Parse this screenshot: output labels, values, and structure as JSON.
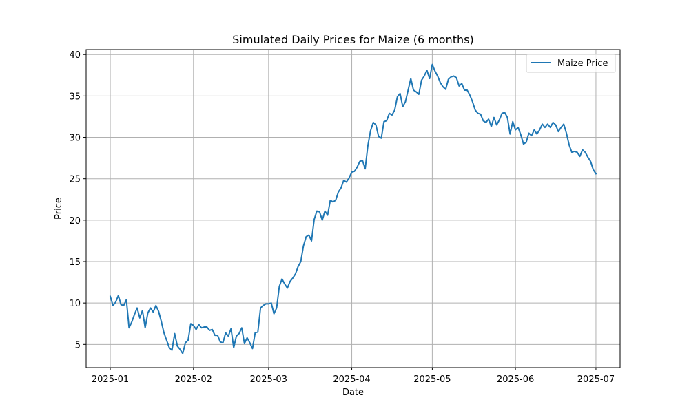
{
  "chart_data": {
    "type": "line",
    "title": "Simulated Daily Prices for Maize (6 months)",
    "xlabel": "Date",
    "ylabel": "Price",
    "xlim": [
      "2024-12-23",
      "2025-07-10"
    ],
    "ylim": [
      2.2,
      40.6
    ],
    "x_ticks": [
      "2025-01",
      "2025-02",
      "2025-03",
      "2025-04",
      "2025-05",
      "2025-06",
      "2025-07"
    ],
    "y_ticks": [
      5,
      10,
      15,
      20,
      25,
      30,
      35,
      40
    ],
    "grid": true,
    "legend_position": "top-right",
    "line_color": "#1f77b4",
    "series": [
      {
        "name": "Maize Price",
        "start": "2025-01-01",
        "end": "2025-07-01",
        "values": [
          10.8,
          9.7,
          10.1,
          10.9,
          9.8,
          9.7,
          10.4,
          7.0,
          7.7,
          8.6,
          9.4,
          8.2,
          9.1,
          7.0,
          8.8,
          9.4,
          8.9,
          9.7,
          9.0,
          7.8,
          6.4,
          5.5,
          4.6,
          4.3,
          6.3,
          4.8,
          4.4,
          3.9,
          5.2,
          5.5,
          7.5,
          7.3,
          6.8,
          7.4,
          7.0,
          7.1,
          7.1,
          6.7,
          6.8,
          6.1,
          6.1,
          5.3,
          5.2,
          6.4,
          6.0,
          6.9,
          4.6,
          6.0,
          6.3,
          7.0,
          5.1,
          5.8,
          5.2,
          4.5,
          6.4,
          6.5,
          9.4,
          9.7,
          9.9,
          9.9,
          10.0,
          8.7,
          9.4,
          12.0,
          12.9,
          12.3,
          11.8,
          12.6,
          13.0,
          13.5,
          14.4,
          15.0,
          16.9,
          18.0,
          18.2,
          17.5,
          20.1,
          21.1,
          21.0,
          20.0,
          21.1,
          20.6,
          22.4,
          22.2,
          22.4,
          23.4,
          23.9,
          24.8,
          24.6,
          25.1,
          25.8,
          25.9,
          26.4,
          27.1,
          27.2,
          26.2,
          29.0,
          30.8,
          31.8,
          31.5,
          30.1,
          29.9,
          31.9,
          32.0,
          32.9,
          32.7,
          33.3,
          34.9,
          35.3,
          33.7,
          34.3,
          35.7,
          37.1,
          35.7,
          35.5,
          35.2,
          36.9,
          37.4,
          38.1,
          37.1,
          38.8,
          38.0,
          37.4,
          36.6,
          36.1,
          35.8,
          37.0,
          37.3,
          37.4,
          37.2,
          36.2,
          36.5,
          35.7,
          35.7,
          35.1,
          34.3,
          33.3,
          32.9,
          32.8,
          32.0,
          31.8,
          32.2,
          31.3,
          32.4,
          31.5,
          32.1,
          32.9,
          33.0,
          32.4,
          30.4,
          31.9,
          30.9,
          31.2,
          30.3,
          29.2,
          29.4,
          30.5,
          30.2,
          30.9,
          30.4,
          30.9,
          31.6,
          31.2,
          31.6,
          31.2,
          31.8,
          31.5,
          30.7,
          31.2,
          31.6,
          30.5,
          29.1,
          28.2,
          28.3,
          28.2,
          27.7,
          28.5,
          28.2,
          27.6,
          27.1,
          26.1,
          25.6
        ]
      }
    ]
  }
}
